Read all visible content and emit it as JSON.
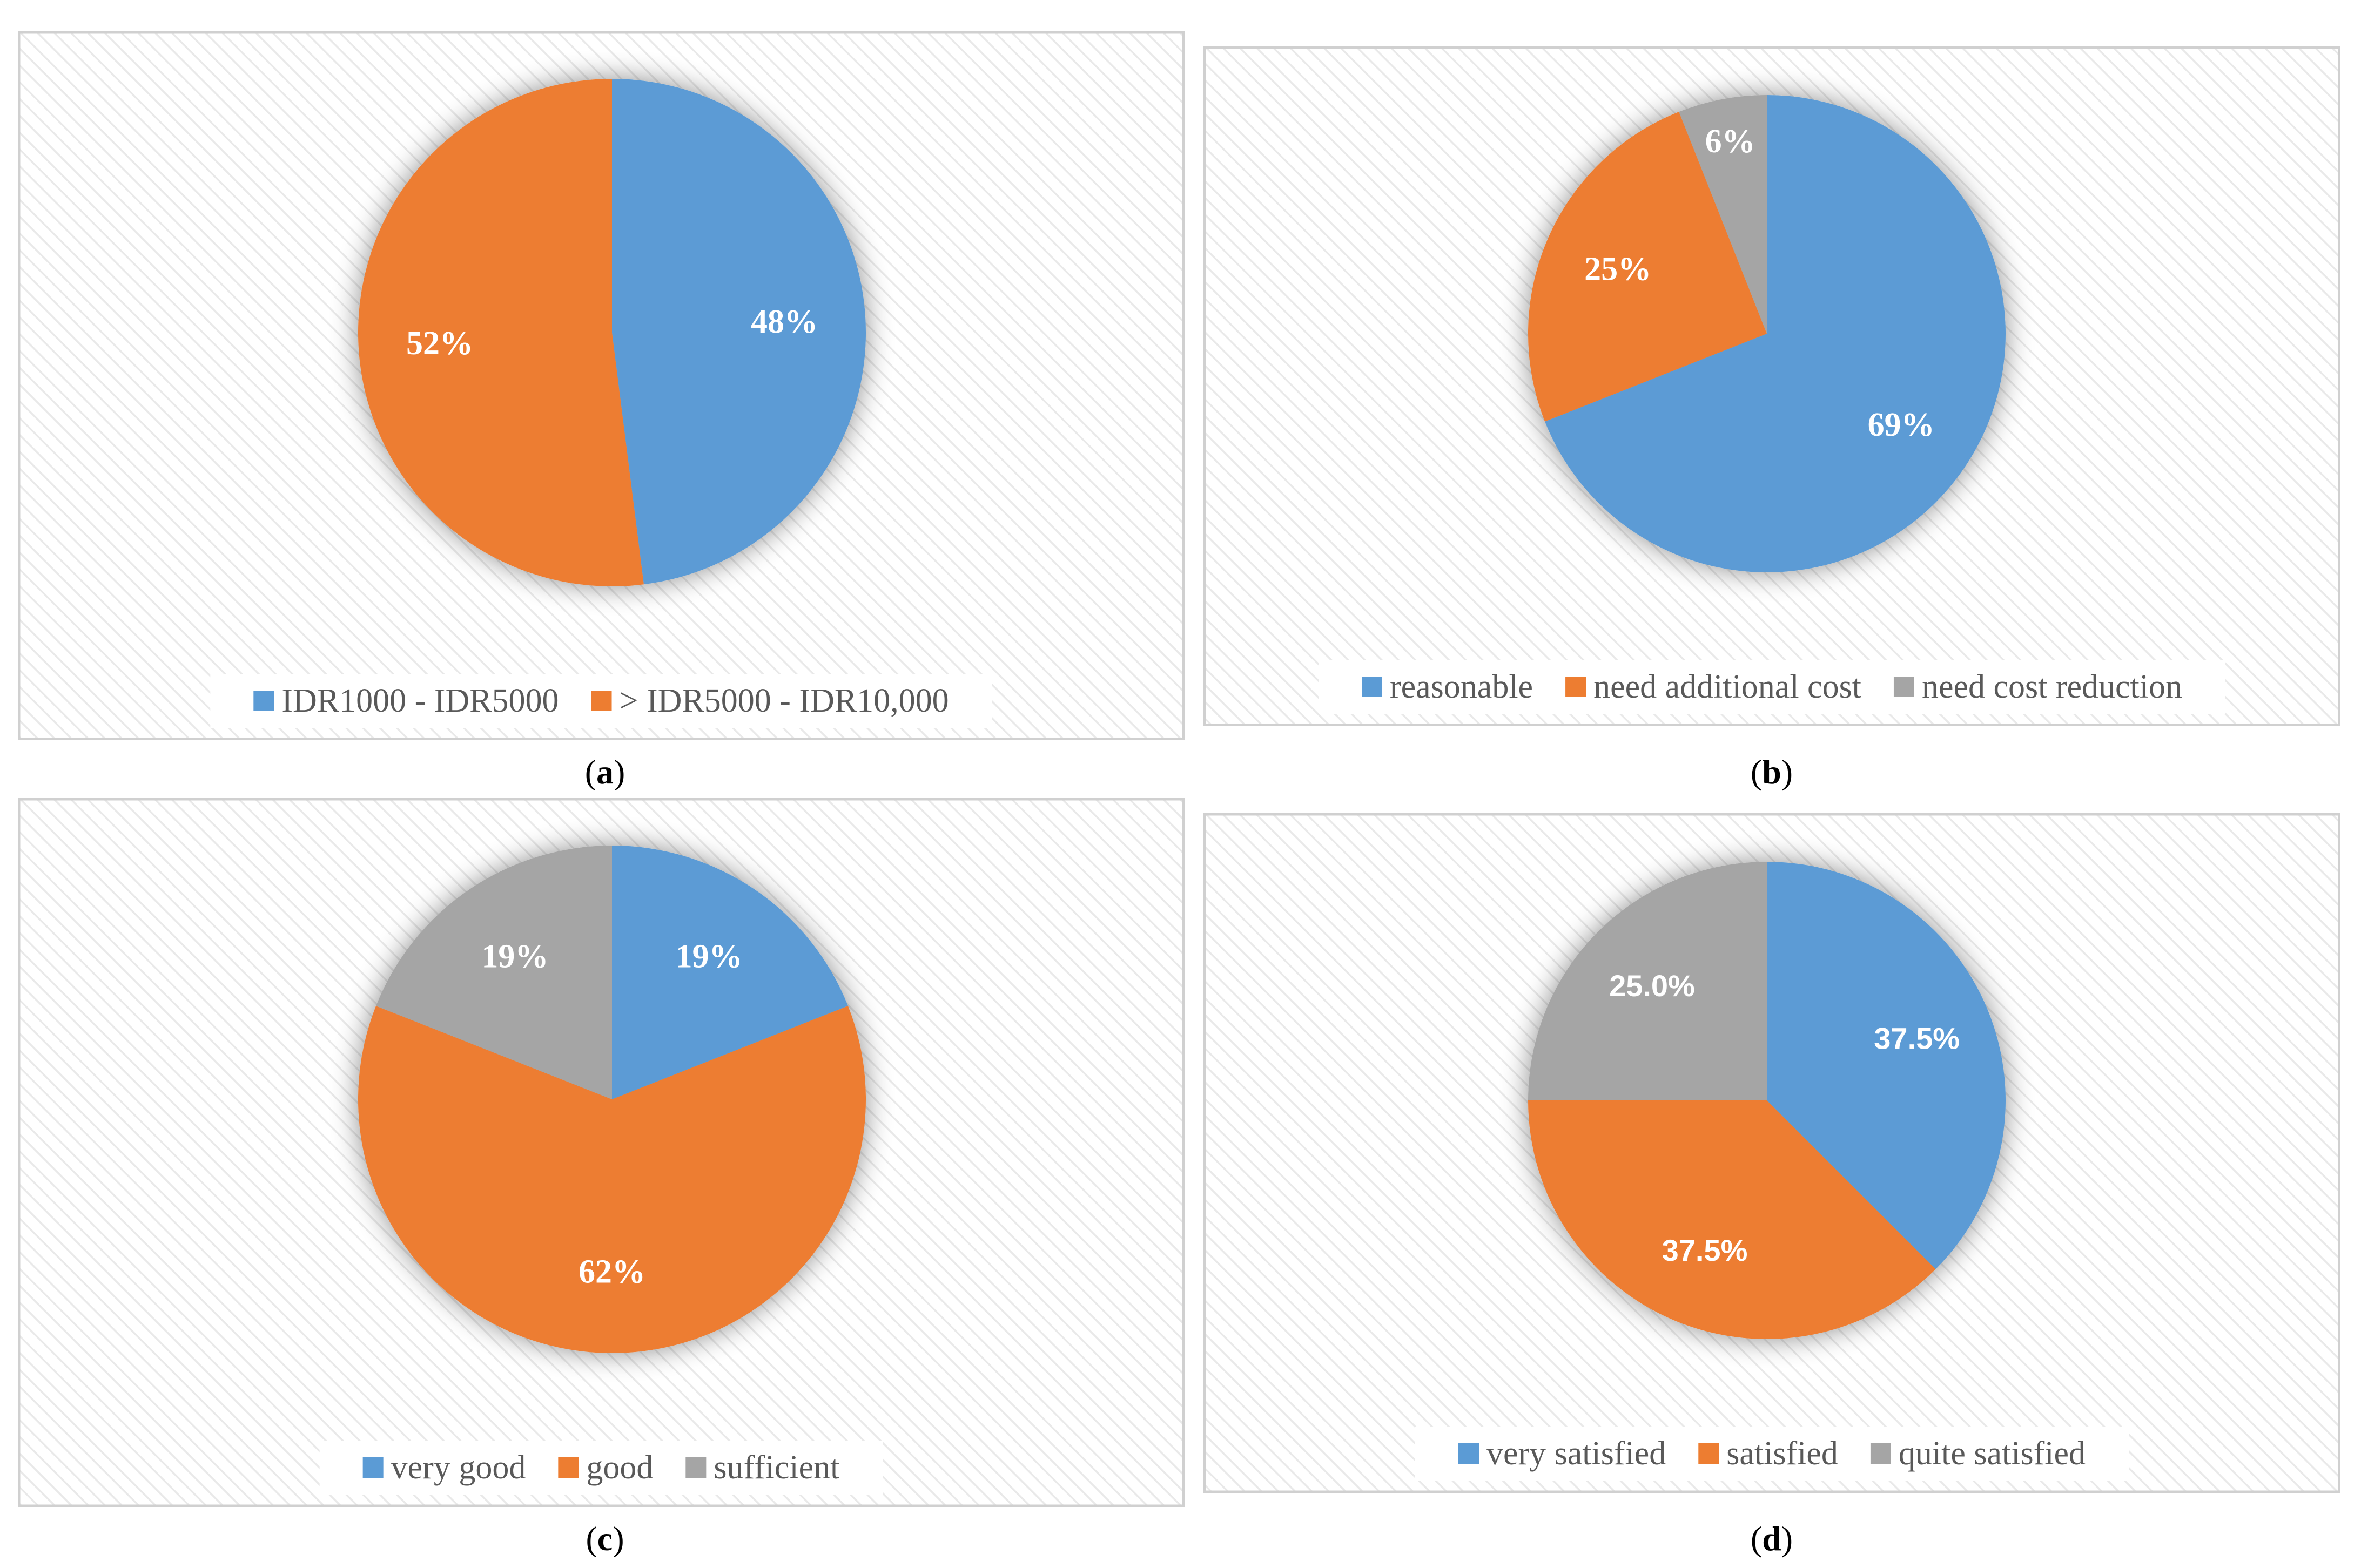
{
  "chart_data": [
    {
      "type": "pie",
      "caption": "a",
      "labels": [
        "IDR1000 - IDR5000",
        "> IDR5000 - IDR10,000"
      ],
      "values": [
        48,
        52
      ],
      "data_labels": [
        "48%",
        "52%"
      ],
      "colors": [
        "#5B9BD5",
        "#ED7D31"
      ],
      "legend": "bottom",
      "label_font": "serif"
    },
    {
      "type": "pie",
      "caption": "b",
      "labels": [
        "reasonable",
        "need additional cost",
        "need cost reduction"
      ],
      "values": [
        69,
        25,
        6
      ],
      "data_labels": [
        "69%",
        "25%",
        "6%"
      ],
      "colors": [
        "#5B9BD5",
        "#ED7D31",
        "#A5A5A5"
      ],
      "legend": "bottom",
      "label_font": "serif"
    },
    {
      "type": "pie",
      "caption": "c",
      "labels": [
        "very good",
        "good",
        "sufficient"
      ],
      "values": [
        19,
        62,
        19
      ],
      "data_labels": [
        "19%",
        "62%",
        "19%"
      ],
      "colors": [
        "#5B9BD5",
        "#ED7D31",
        "#A5A5A5"
      ],
      "legend": "bottom",
      "label_font": "serif"
    },
    {
      "type": "pie",
      "caption": "d",
      "labels": [
        "very satisfied",
        "satisfied",
        "quite satisfied"
      ],
      "values": [
        37.5,
        37.5,
        25.0
      ],
      "data_labels": [
        "37.5%",
        "37.5%",
        "25.0%"
      ],
      "colors": [
        "#5B9BD5",
        "#ED7D31",
        "#A5A5A5"
      ],
      "legend": "bottom",
      "label_font": "sans"
    }
  ],
  "captions": {
    "a": "(a)",
    "b": "(b)",
    "c": "(c)",
    "d": "(d)"
  },
  "caption_letters": [
    "a",
    "b",
    "c",
    "d"
  ]
}
